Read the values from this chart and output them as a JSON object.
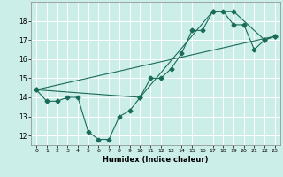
{
  "xlabel": "Humidex (Indice chaleur)",
  "bg_color": "#cceee8",
  "grid_color": "#ffffff",
  "line_color": "#1a6b5a",
  "xlim": [
    -0.5,
    23.5
  ],
  "ylim": [
    11.5,
    19.0
  ],
  "yticks": [
    12,
    13,
    14,
    15,
    16,
    17,
    18
  ],
  "xticks": [
    0,
    1,
    2,
    3,
    4,
    5,
    6,
    7,
    8,
    9,
    10,
    11,
    12,
    13,
    14,
    15,
    16,
    17,
    18,
    19,
    20,
    21,
    22,
    23
  ],
  "line1_x": [
    0,
    1,
    2,
    3,
    4,
    5,
    6,
    7,
    8,
    9,
    10,
    11,
    12,
    13,
    14,
    15,
    16,
    17,
    18,
    19,
    20,
    21,
    22,
    23
  ],
  "line1_y": [
    14.4,
    13.8,
    13.8,
    14.0,
    14.0,
    12.2,
    11.8,
    11.8,
    13.0,
    13.3,
    14.0,
    15.0,
    15.0,
    15.5,
    16.3,
    17.5,
    17.5,
    18.5,
    18.5,
    17.8,
    17.8,
    16.5,
    17.0,
    17.2
  ],
  "line2_x": [
    0,
    10,
    17,
    19,
    22,
    23
  ],
  "line2_y": [
    14.4,
    14.0,
    18.5,
    18.5,
    17.0,
    17.2
  ],
  "line3_x": [
    0,
    23
  ],
  "line3_y": [
    14.4,
    17.2
  ]
}
